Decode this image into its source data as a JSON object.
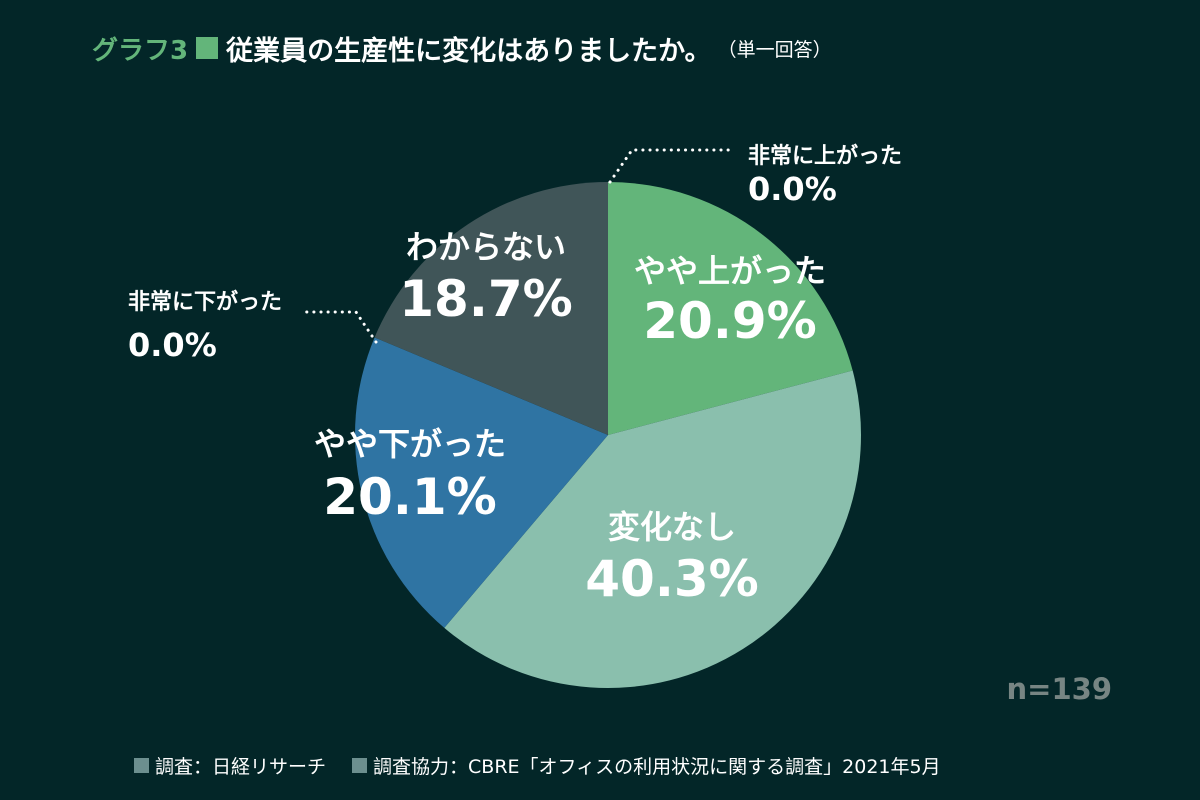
{
  "header": {
    "graph_label": "グラフ3",
    "title": "従業員の生産性に変化はありましたか。",
    "subtitle": "（単一回答）"
  },
  "chart_data": {
    "type": "pie",
    "title": "従業員の生産性に変化はありましたか。",
    "subtitle": "（単一回答）",
    "start": "12 o'clock",
    "direction": "clockwise",
    "slices": [
      {
        "label": "非常に上がった",
        "value": 0.0,
        "display": "0.0%",
        "color": "#63b57a"
      },
      {
        "label": "やや上がった",
        "value": 20.9,
        "display": "20.9%",
        "color": "#63b57a"
      },
      {
        "label": "変化なし",
        "value": 40.3,
        "display": "40.3%",
        "color": "#8abfad"
      },
      {
        "label": "やや下がった",
        "value": 20.1,
        "display": "20.1%",
        "color": "#2f74a3"
      },
      {
        "label": "非常に下がった",
        "value": 0.0,
        "display": "0.0%",
        "color": "#2f74a3"
      },
      {
        "label": "わからない",
        "value": 18.7,
        "display": "18.7%",
        "color": "#405558"
      }
    ],
    "sample_size": "n=139"
  },
  "footer": {
    "source": "調査：日経リサーチ",
    "cooperation": "調査協力：CBRE「オフィスの利用状況に関する調査」2021年5月"
  },
  "colors": {
    "background": "#032628",
    "accent": "#63b57a",
    "muted_text": "#778583",
    "footer_square": "#6c8f8f"
  }
}
